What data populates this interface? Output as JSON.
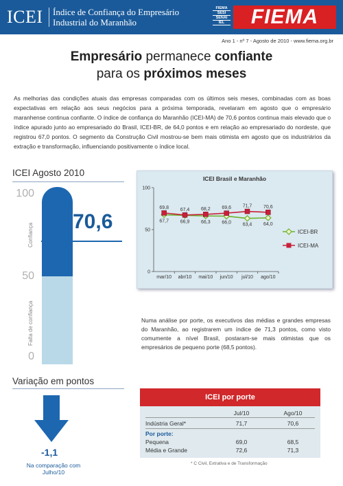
{
  "header": {
    "logo": "ICEI",
    "title_line1": "Índice de Confiança do Empresário",
    "title_line2": "Industrial do Maranhão",
    "sistema": [
      "FIEMA",
      "SESI",
      "SENAI",
      "IEL"
    ],
    "brand": "FIEMA"
  },
  "edition": "Ano 1 - nº 7 - Agosto de 2010 - www.fiema.org.br",
  "headline": {
    "part1": "Empresário",
    "part2": " permanece ",
    "part3": "confiante",
    "part4": "para os ",
    "part5": "próximos meses"
  },
  "intro": "As melhorias das condições atuais das empresas comparadas com os últimos seis meses, combinadas com as boas expectativas em relação aos seus negócios para a próxima temporada, revelaram em agosto que o empresário maranhense continua confiante. O índice de confiança do Maranhão (ICEI-MA) de 70,6 pontos continua mais elevado que o índice apurado junto ao empresariado do Brasil, ICEI-BR, de 64,0 pontos e em relação ao empresariado do nordeste, que registrou 67,0 pontos. O segmento da Construção Civil mostrou-se bem mais otimista em agosto que os industriários da extração e transformação, influenciando positivamente o índice local.",
  "gauge": {
    "title": "ICEI Agosto 2010",
    "scale_top": "100",
    "scale_mid": "50",
    "scale_bottom": "0",
    "label_upper": "Confiança",
    "label_lower": "Falta de confiança",
    "value": "70,6",
    "value_fraction": 0.706
  },
  "variation": {
    "title": "Variação em pontos",
    "value": "-1,1",
    "note_line1": "Na comparação com",
    "note_line2": "Julho/10"
  },
  "chart_data": {
    "type": "line",
    "title": "ICEI Brasil e Maranhão",
    "categories": [
      "mar/10",
      "abr/10",
      "mai/10",
      "jun/10",
      "jul/10",
      "ago/10"
    ],
    "ylim": [
      0,
      100
    ],
    "yticks": [
      "0",
      "50",
      "100"
    ],
    "grid": false,
    "legend": "right",
    "series": [
      {
        "name": "ICEI-BR",
        "values": [
          67.7,
          66.9,
          66.3,
          66.0,
          63.4,
          64.0
        ],
        "labels": [
          "67,7",
          "66,9",
          "66,3",
          "66,0",
          "63,4",
          "64,0"
        ],
        "color": "#6ab42d",
        "marker": "diamond"
      },
      {
        "name": "ICEI-MA",
        "values": [
          69.8,
          67.4,
          68.2,
          69.6,
          71.7,
          70.6
        ],
        "labels": [
          "69,8",
          "67,4",
          "68,2",
          "69,6",
          "71,7",
          "70,6"
        ],
        "color": "#c8203a",
        "marker": "square"
      }
    ]
  },
  "porte_text": "Numa análise por porte, os executivos das médias e grandes empresas do Maranhão, ao registrarem um índice de 71,3 pontos, como visto comumente a nível Brasil, postaram-se mais otimistas que os empresários de pequeno porte (68,5 pontos).",
  "table": {
    "title": "ICEI por porte",
    "col1": "Jul/10",
    "col2": "Ago/10",
    "row_geral": {
      "label": "Indústria Geral*",
      "v1": "71,7",
      "v2": "70,6"
    },
    "section": "Por porte:",
    "row_pequena": {
      "label": "Pequena",
      "v1": "69,0",
      "v2": "68,5"
    },
    "row_media": {
      "label": "Média e Grande",
      "v1": "72,6",
      "v2": "71,3"
    },
    "footnote": "* C Civil, Extrativa e de Transformação"
  },
  "colors": {
    "brand_blue": "#1a5a9a",
    "brand_red": "#d92023",
    "thermo_dark": "#1d67b0",
    "thermo_light": "#b9d9e8"
  }
}
